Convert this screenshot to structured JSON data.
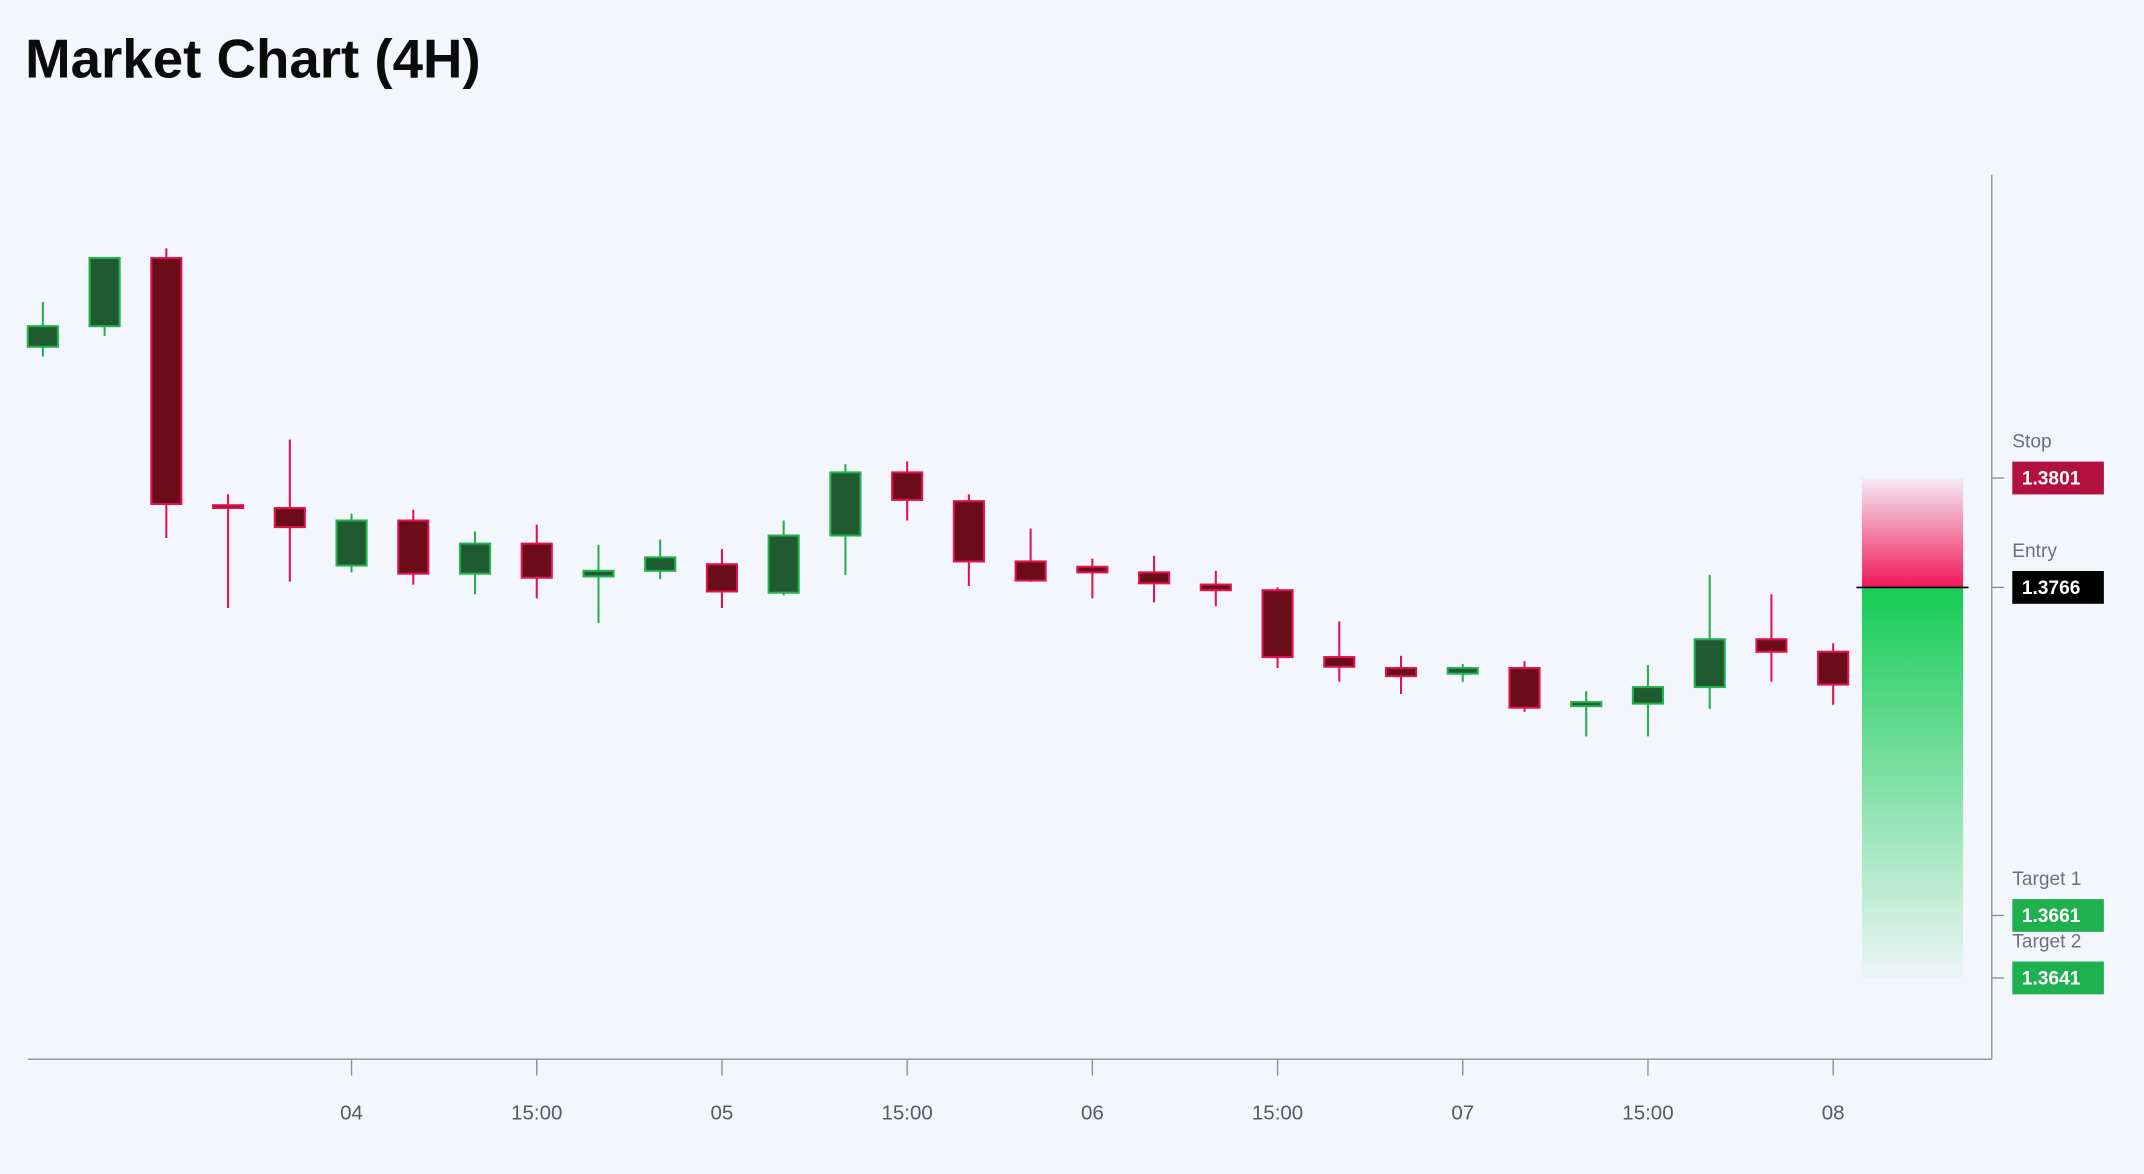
{
  "chart_data": {
    "type": "candlestick",
    "title": "Market Chart (4H)",
    "x": [
      null,
      null,
      null,
      null,
      null,
      "04",
      null,
      null,
      "15:00",
      null,
      null,
      "05",
      null,
      null,
      "15:00",
      null,
      null,
      "06",
      null,
      null,
      "15:00",
      null,
      null,
      "07",
      null,
      null,
      "15:00",
      null,
      null,
      "08"
    ],
    "open": [
      1.3843,
      1.38496,
      1.38714,
      1.37923,
      1.37914,
      1.3773,
      1.37874,
      1.37704,
      1.378,
      1.37695,
      1.37713,
      1.37734,
      1.37643,
      1.37826,
      1.38028,
      1.37936,
      1.37743,
      1.37726,
      1.37708,
      1.37669,
      1.37651,
      1.37437,
      1.37402,
      1.37384,
      1.37402,
      1.3728,
      1.37288,
      1.37341,
      1.37494,
      1.37454
    ],
    "high": [
      1.38574,
      1.38714,
      1.38745,
      1.37958,
      1.38133,
      1.37896,
      1.37909,
      1.37839,
      1.37861,
      1.37796,
      1.37813,
      1.37783,
      1.37874,
      1.38054,
      1.38063,
      1.37958,
      1.37848,
      1.37752,
      1.37761,
      1.37713,
      1.3766,
      1.37551,
      1.37441,
      1.37415,
      1.37424,
      1.37328,
      1.37411,
      1.377,
      1.37638,
      1.37481
    ],
    "low": [
      1.38399,
      1.38465,
      1.37818,
      1.37594,
      1.37678,
      1.37708,
      1.37669,
      1.37638,
      1.37625,
      1.37546,
      1.37686,
      1.37594,
      1.37634,
      1.377,
      1.37874,
      1.37664,
      1.37678,
      1.37625,
      1.37612,
      1.376,
      1.37402,
      1.37358,
      1.37319,
      1.37358,
      1.37262,
      1.37183,
      1.37183,
      1.37271,
      1.37358,
      1.37284
    ],
    "close": [
      1.38496,
      1.38714,
      1.37927,
      1.37914,
      1.37853,
      1.37874,
      1.37704,
      1.378,
      1.37691,
      1.37713,
      1.37756,
      1.37647,
      1.37826,
      1.38028,
      1.3794,
      1.37743,
      1.37682,
      1.37708,
      1.37673,
      1.37651,
      1.37437,
      1.37406,
      1.37376,
      1.37402,
      1.37275,
      1.37293,
      1.37341,
      1.37494,
      1.37454,
      1.37349
    ],
    "up_color": "#22b14c",
    "down_color": "#e0134f",
    "ylim": [
      1.3615,
      1.3898
    ],
    "levels": [
      {
        "name": "Stop",
        "value": 1.3801,
        "color": "#b3103f"
      },
      {
        "name": "Entry",
        "value": 1.3766,
        "color": "#000000"
      },
      {
        "name": "Target 1",
        "value": 1.3661,
        "color": "#1fb14f"
      },
      {
        "name": "Target 2",
        "value": 1.3641,
        "color": "#1fb14f"
      }
    ]
  }
}
